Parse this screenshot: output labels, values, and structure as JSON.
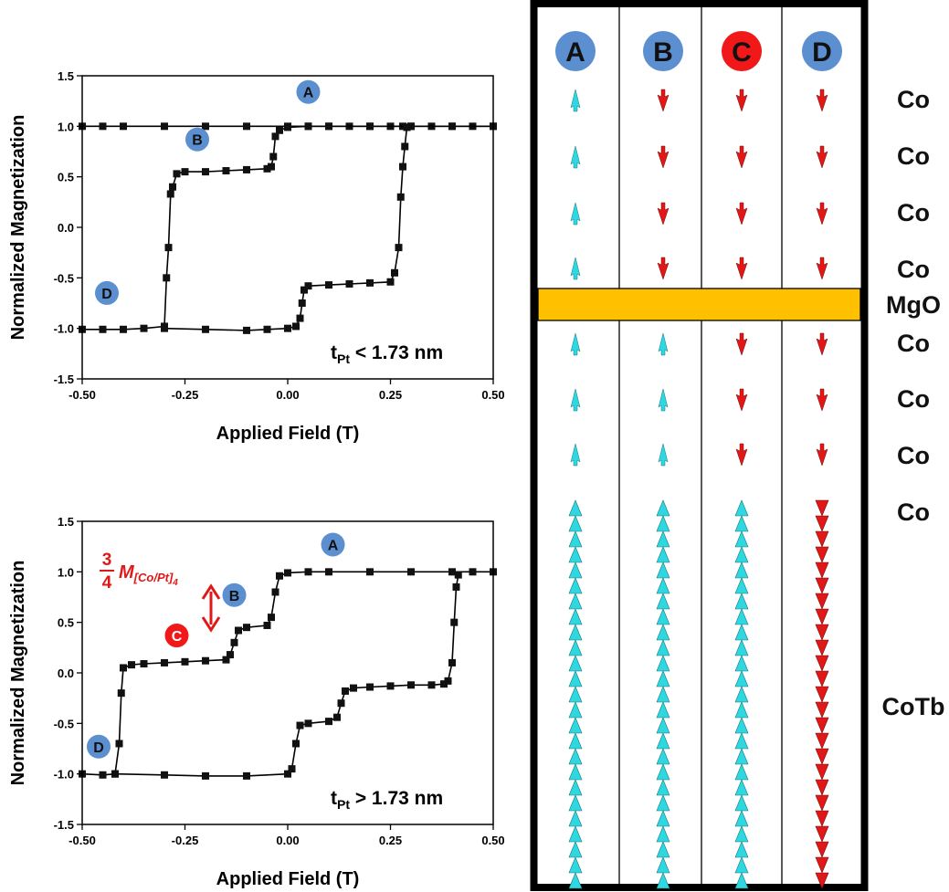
{
  "colors": {
    "up": "#2fd8e0",
    "down": "#e01818",
    "label_blue": "#5b8fd0",
    "label_red": "#f01818",
    "mgo": "#ffc000"
  },
  "chart_data": [
    {
      "type": "scatter",
      "ylabel": "Normalized Magnetization",
      "xlabel": "Applied Field (T)",
      "xlim": [
        -0.5,
        0.5
      ],
      "ylim": [
        -1.5,
        1.5
      ],
      "xticks": [
        "-0.50",
        "-0.25",
        "0.00",
        "0.25",
        "0.50"
      ],
      "yticks": [
        "-1.5",
        "-1.0",
        "-0.5",
        "0.0",
        "0.5",
        "1.0",
        "1.5"
      ],
      "annotation_prefix": "t",
      "annotation_sub": "Pt",
      "annotation_suffix": " < 1.73 nm",
      "state_labels": [
        {
          "text": "A",
          "x": 0.05,
          "y": 1.34
        },
        {
          "text": "B",
          "x": -0.22,
          "y": 0.87
        },
        {
          "text": "D",
          "x": -0.44,
          "y": -0.65
        }
      ],
      "series": [
        {
          "points": [
            [
              -0.5,
              1.0
            ],
            [
              -0.45,
              1.0
            ],
            [
              -0.4,
              1.0
            ],
            [
              -0.3,
              1.0
            ],
            [
              -0.2,
              1.0
            ],
            [
              -0.1,
              1.0
            ],
            [
              0.0,
              1.0
            ],
            [
              0.05,
              1.0
            ],
            [
              0.1,
              1.0
            ],
            [
              0.15,
              1.0
            ],
            [
              0.2,
              1.0
            ],
            [
              0.25,
              1.0
            ],
            [
              0.28,
              1.0
            ],
            [
              0.29,
              0.99
            ],
            [
              0.3,
              1.0
            ],
            [
              0.35,
              1.0
            ],
            [
              0.4,
              1.0
            ],
            [
              0.45,
              1.0
            ],
            [
              0.5,
              1.0
            ]
          ]
        },
        {
          "points": [
            [
              0.5,
              1.0
            ],
            [
              0.4,
              1.0
            ],
            [
              0.3,
              1.0
            ],
            [
              0.2,
              1.0
            ],
            [
              0.1,
              1.0
            ],
            [
              0.05,
              1.0
            ],
            [
              0.0,
              0.99
            ],
            [
              -0.02,
              0.96
            ],
            [
              -0.03,
              0.9
            ],
            [
              -0.035,
              0.7
            ],
            [
              -0.04,
              0.6
            ],
            [
              -0.05,
              0.58
            ],
            [
              -0.1,
              0.57
            ],
            [
              -0.15,
              0.56
            ],
            [
              -0.2,
              0.55
            ],
            [
              -0.25,
              0.55
            ],
            [
              -0.27,
              0.53
            ],
            [
              -0.28,
              0.4
            ],
            [
              -0.285,
              0.33
            ],
            [
              -0.29,
              -0.2
            ],
            [
              -0.295,
              -0.5
            ],
            [
              -0.3,
              -0.98
            ],
            [
              -0.35,
              -1.0
            ],
            [
              -0.4,
              -1.01
            ],
            [
              -0.45,
              -1.01
            ],
            [
              -0.5,
              -1.01
            ]
          ]
        },
        {
          "points": [
            [
              -0.3,
              -1.0
            ],
            [
              -0.2,
              -1.01
            ],
            [
              -0.1,
              -1.02
            ],
            [
              -0.05,
              -1.01
            ],
            [
              0.0,
              -1.0
            ],
            [
              0.02,
              -0.98
            ],
            [
              0.03,
              -0.9
            ],
            [
              0.035,
              -0.75
            ],
            [
              0.04,
              -0.62
            ],
            [
              0.05,
              -0.58
            ],
            [
              0.1,
              -0.57
            ],
            [
              0.15,
              -0.56
            ],
            [
              0.2,
              -0.55
            ],
            [
              0.25,
              -0.54
            ],
            [
              0.26,
              -0.45
            ],
            [
              0.27,
              -0.2
            ],
            [
              0.275,
              0.3
            ],
            [
              0.28,
              0.6
            ],
            [
              0.285,
              0.8
            ],
            [
              0.29,
              0.99
            ]
          ]
        }
      ]
    },
    {
      "type": "scatter",
      "ylabel": "Normalized Magnetization",
      "xlabel": "Applied Field (T)",
      "xlim": [
        -0.5,
        0.5
      ],
      "ylim": [
        -1.5,
        1.5
      ],
      "xticks": [
        "-0.50",
        "-0.25",
        "0.00",
        "0.25",
        "0.50"
      ],
      "yticks": [
        "-1.5",
        "-1.0",
        "-0.5",
        "0.0",
        "0.5",
        "1.0",
        "1.5"
      ],
      "annotation_prefix": "t",
      "annotation_sub": "Pt",
      "annotation_suffix": " > 1.73 nm",
      "fraction_num": "3",
      "fraction_den": "4",
      "moment_label": "M",
      "moment_sub": "[Co/Pt]",
      "moment_subsub": "4",
      "state_labels": [
        {
          "text": "A",
          "x": 0.11,
          "y": 1.27
        },
        {
          "text": "B",
          "x": -0.13,
          "y": 0.77
        },
        {
          "text": "C",
          "x": -0.27,
          "y": 0.37,
          "red": true
        },
        {
          "text": "D",
          "x": -0.46,
          "y": -0.73
        }
      ],
      "series": [
        {
          "points": [
            [
              -0.5,
              -1.0
            ],
            [
              -0.45,
              -1.01
            ],
            [
              -0.42,
              -1.0
            ],
            [
              -0.41,
              -0.7
            ],
            [
              -0.405,
              -0.2
            ],
            [
              -0.4,
              0.05
            ],
            [
              -0.38,
              0.08
            ],
            [
              -0.35,
              0.09
            ],
            [
              -0.3,
              0.1
            ],
            [
              -0.25,
              0.11
            ],
            [
              -0.2,
              0.12
            ],
            [
              -0.15,
              0.13
            ],
            [
              -0.14,
              0.18
            ],
            [
              -0.13,
              0.3
            ],
            [
              -0.12,
              0.42
            ],
            [
              -0.1,
              0.45
            ],
            [
              -0.05,
              0.47
            ],
            [
              -0.04,
              0.55
            ],
            [
              -0.03,
              0.8
            ],
            [
              -0.02,
              0.96
            ],
            [
              0.0,
              0.99
            ],
            [
              0.05,
              1.0
            ],
            [
              0.1,
              1.0
            ],
            [
              0.2,
              1.0
            ],
            [
              0.3,
              1.0
            ],
            [
              0.4,
              1.0
            ],
            [
              0.45,
              1.0
            ],
            [
              0.5,
              1.0
            ]
          ]
        },
        {
          "points": [
            [
              -0.42,
              -1.0
            ],
            [
              -0.3,
              -1.01
            ],
            [
              -0.2,
              -1.02
            ],
            [
              -0.1,
              -1.02
            ],
            [
              0.0,
              -1.0
            ],
            [
              0.01,
              -0.95
            ],
            [
              0.02,
              -0.7
            ],
            [
              0.03,
              -0.52
            ],
            [
              0.05,
              -0.5
            ],
            [
              0.1,
              -0.48
            ],
            [
              0.12,
              -0.44
            ],
            [
              0.13,
              -0.3
            ],
            [
              0.14,
              -0.18
            ],
            [
              0.16,
              -0.15
            ],
            [
              0.2,
              -0.14
            ],
            [
              0.25,
              -0.13
            ],
            [
              0.3,
              -0.12
            ],
            [
              0.35,
              -0.12
            ],
            [
              0.38,
              -0.11
            ],
            [
              0.39,
              -0.08
            ],
            [
              0.4,
              0.1
            ],
            [
              0.405,
              0.5
            ],
            [
              0.41,
              0.85
            ],
            [
              0.415,
              0.97
            ]
          ]
        }
      ]
    }
  ],
  "diagram": {
    "columns": [
      {
        "label": "A",
        "red": false,
        "layers": [
          "up",
          "up",
          "up",
          "up",
          "up",
          "up",
          "up",
          "up"
        ]
      },
      {
        "label": "B",
        "red": false,
        "layers": [
          "down",
          "down",
          "down",
          "down",
          "up",
          "up",
          "up",
          "up"
        ]
      },
      {
        "label": "C",
        "red": true,
        "layers": [
          "down",
          "down",
          "down",
          "down",
          "down",
          "down",
          "down",
          "up"
        ]
      },
      {
        "label": "D",
        "red": false,
        "layers": [
          "down",
          "down",
          "down",
          "down",
          "down",
          "down",
          "down",
          "down"
        ]
      }
    ],
    "layer_labels": [
      "Co",
      "Co",
      "Co",
      "Co",
      "MgO",
      "Co",
      "Co",
      "Co",
      "Co",
      "CoTb"
    ]
  }
}
